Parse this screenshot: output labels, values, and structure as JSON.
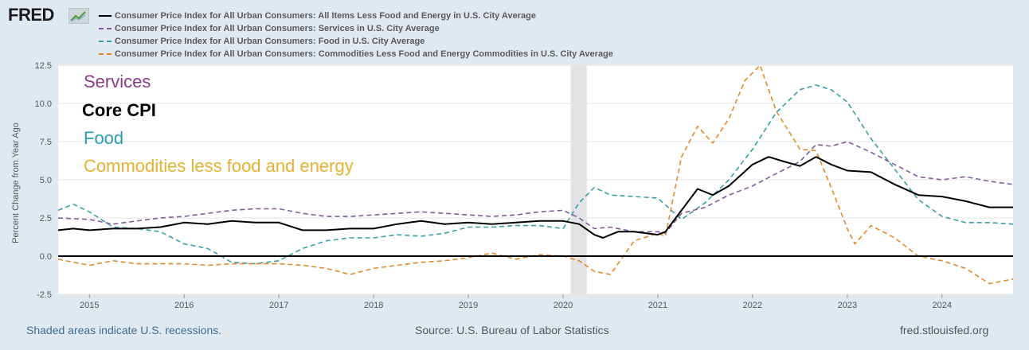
{
  "brand": {
    "logo_text": "FRED"
  },
  "footer": {
    "recession_note": "Shaded areas indicate U.S. recessions.",
    "source": "Source: U.S. Bureau of Labor Statistics",
    "site": "fred.stlouisfed.org"
  },
  "overlay_labels": {
    "services": "Services",
    "core": "Core CPI",
    "food": "Food",
    "commodities": "Commodities less food and energy"
  },
  "colors": {
    "core": "#000000",
    "services": "#7f5c99",
    "food": "#3a9ea5",
    "commodities": "#e08a2c",
    "label_services": "#8a3c8c",
    "label_food": "#2a9db4",
    "label_commodities": "#e6b030"
  },
  "chart_data": {
    "type": "line",
    "ylabel": "Percent Change from Year Ago",
    "ylim": [
      -2.5,
      12.5
    ],
    "y_ticks": [
      "12.5",
      "10.0",
      "7.5",
      "5.0",
      "2.5",
      "0.0",
      "-2.5"
    ],
    "x_ticks": [
      "2015",
      "2016",
      "2017",
      "2018",
      "2019",
      "2020",
      "2021",
      "2022",
      "2023",
      "2024"
    ],
    "xlim": [
      2014.67,
      2024.75
    ],
    "recession": [
      2020.08,
      2020.25
    ],
    "grid": true,
    "legend_position": "top",
    "series": [
      {
        "key": "core",
        "name": "Consumer Price Index for All Urban Consumers: All Items Less Food and Energy in U.S. City Average",
        "style": "solid",
        "x": [
          2014.67,
          2014.83,
          2015.0,
          2015.25,
          2015.5,
          2015.75,
          2016.0,
          2016.25,
          2016.5,
          2016.75,
          2017.0,
          2017.25,
          2017.5,
          2017.75,
          2018.0,
          2018.25,
          2018.5,
          2018.75,
          2019.0,
          2019.25,
          2019.5,
          2019.75,
          2020.0,
          2020.17,
          2020.33,
          2020.42,
          2020.58,
          2020.75,
          2021.0,
          2021.08,
          2021.25,
          2021.42,
          2021.58,
          2021.75,
          2022.0,
          2022.17,
          2022.33,
          2022.5,
          2022.67,
          2022.83,
          2023.0,
          2023.25,
          2023.5,
          2023.75,
          2024.0,
          2024.25,
          2024.5,
          2024.75
        ],
        "y": [
          1.7,
          1.8,
          1.7,
          1.8,
          1.8,
          1.9,
          2.2,
          2.1,
          2.3,
          2.2,
          2.2,
          1.7,
          1.7,
          1.8,
          1.8,
          2.1,
          2.3,
          2.1,
          2.2,
          2.1,
          2.2,
          2.3,
          2.3,
          2.1,
          1.4,
          1.2,
          1.6,
          1.6,
          1.4,
          1.6,
          3.0,
          4.4,
          4.0,
          4.6,
          6.0,
          6.5,
          6.2,
          5.9,
          6.5,
          6.0,
          5.6,
          5.5,
          4.7,
          4.0,
          3.9,
          3.6,
          3.2,
          3.2
        ]
      },
      {
        "key": "services",
        "name": "Consumer Price Index for All Urban Consumers: Services in U.S. City Average",
        "style": "dashed",
        "x": [
          2014.67,
          2015.0,
          2015.25,
          2015.5,
          2015.75,
          2016.0,
          2016.25,
          2016.5,
          2016.75,
          2017.0,
          2017.25,
          2017.5,
          2017.75,
          2018.0,
          2018.25,
          2018.5,
          2018.75,
          2019.0,
          2019.25,
          2019.5,
          2019.75,
          2020.0,
          2020.17,
          2020.33,
          2020.5,
          2020.75,
          2021.0,
          2021.08,
          2021.25,
          2021.5,
          2021.75,
          2022.0,
          2022.25,
          2022.5,
          2022.67,
          2022.83,
          2023.0,
          2023.25,
          2023.5,
          2023.75,
          2024.0,
          2024.25,
          2024.5,
          2024.75
        ],
        "y": [
          2.5,
          2.4,
          2.1,
          2.3,
          2.5,
          2.6,
          2.8,
          3.0,
          3.1,
          3.1,
          2.8,
          2.6,
          2.6,
          2.7,
          2.8,
          2.9,
          2.8,
          2.7,
          2.6,
          2.7,
          2.9,
          3.0,
          2.5,
          1.8,
          1.9,
          1.6,
          1.6,
          1.5,
          2.8,
          3.2,
          4.0,
          4.6,
          5.4,
          6.2,
          7.3,
          7.2,
          7.5,
          6.8,
          6.0,
          5.2,
          5.0,
          5.2,
          4.9,
          4.7
        ]
      },
      {
        "key": "food",
        "name": "Consumer Price Index for All Urban Consumers: Food in U.S. City Average",
        "style": "dashed",
        "x": [
          2014.67,
          2014.83,
          2015.0,
          2015.25,
          2015.5,
          2015.75,
          2016.0,
          2016.25,
          2016.5,
          2016.75,
          2017.0,
          2017.25,
          2017.5,
          2017.75,
          2018.0,
          2018.25,
          2018.5,
          2018.75,
          2019.0,
          2019.25,
          2019.5,
          2019.75,
          2020.0,
          2020.17,
          2020.33,
          2020.5,
          2020.75,
          2021.0,
          2021.25,
          2021.5,
          2021.75,
          2022.0,
          2022.25,
          2022.5,
          2022.67,
          2022.83,
          2023.0,
          2023.25,
          2023.5,
          2023.75,
          2024.0,
          2024.25,
          2024.5,
          2024.75
        ],
        "y": [
          3.0,
          3.4,
          2.9,
          1.9,
          1.8,
          1.6,
          0.8,
          0.5,
          -0.4,
          -0.5,
          -0.3,
          0.5,
          1.0,
          1.2,
          1.2,
          1.4,
          1.3,
          1.5,
          1.9,
          1.9,
          2.0,
          2.0,
          1.8,
          3.5,
          4.5,
          4.0,
          3.9,
          3.8,
          2.4,
          3.5,
          5.0,
          7.0,
          9.4,
          10.9,
          11.2,
          10.9,
          10.1,
          7.7,
          5.7,
          3.7,
          2.6,
          2.2,
          2.2,
          2.1
        ]
      },
      {
        "key": "commodities",
        "name": "Consumer Price Index for All Urban Consumers: Commodities Less Food and Energy Commodities in U.S. City Average",
        "style": "dashed",
        "x": [
          2014.67,
          2014.83,
          2015.0,
          2015.25,
          2015.5,
          2015.75,
          2016.0,
          2016.25,
          2016.5,
          2016.75,
          2017.0,
          2017.25,
          2017.5,
          2017.75,
          2018.0,
          2018.25,
          2018.5,
          2018.75,
          2019.0,
          2019.25,
          2019.5,
          2019.75,
          2020.0,
          2020.17,
          2020.33,
          2020.5,
          2020.75,
          2021.0,
          2021.08,
          2021.25,
          2021.42,
          2021.58,
          2021.75,
          2021.92,
          2022.08,
          2022.25,
          2022.5,
          2022.67,
          2022.83,
          2023.0,
          2023.08,
          2023.25,
          2023.5,
          2023.75,
          2024.0,
          2024.25,
          2024.5,
          2024.75
        ],
        "y": [
          -0.2,
          -0.4,
          -0.6,
          -0.3,
          -0.5,
          -0.5,
          -0.5,
          -0.6,
          -0.5,
          -0.5,
          -0.5,
          -0.6,
          -0.8,
          -1.2,
          -0.8,
          -0.6,
          -0.4,
          -0.3,
          -0.1,
          0.2,
          -0.2,
          0.1,
          0.0,
          -0.3,
          -1.0,
          -1.2,
          1.0,
          1.5,
          1.3,
          6.5,
          8.5,
          7.4,
          9.0,
          11.5,
          12.5,
          9.5,
          7.0,
          6.9,
          4.5,
          1.8,
          0.8,
          2.0,
          1.2,
          0.0,
          -0.3,
          -0.8,
          -1.8,
          -1.5
        ]
      }
    ]
  }
}
